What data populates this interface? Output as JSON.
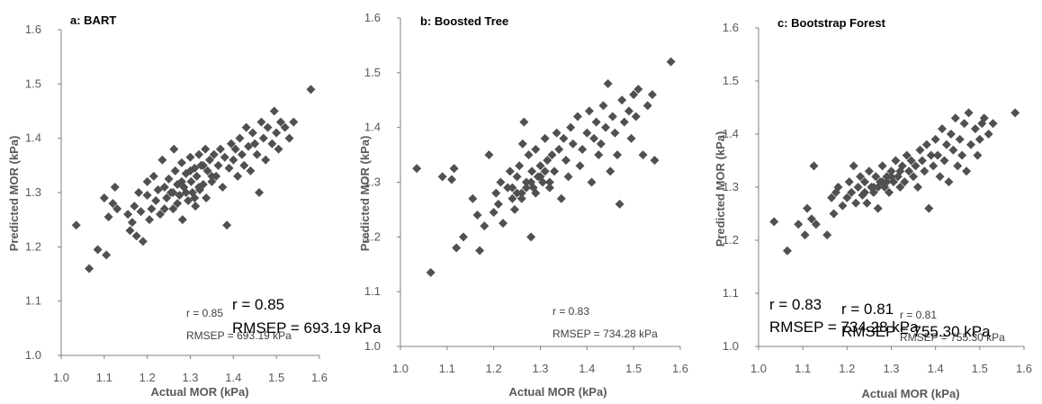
{
  "chart_data": [
    {
      "type": "scatter",
      "title": "a: BART",
      "xlabel": "Actual MOR (kPa)",
      "ylabel": "Predicted MOR (kPa)",
      "xlim": [
        1.0,
        1.6
      ],
      "ylim": [
        1.0,
        1.6
      ],
      "xticks": [
        "1.0",
        "1.1",
        "1.2",
        "1.3",
        "1.4",
        "1.5",
        "1.6"
      ],
      "yticks": [
        "1.0",
        "1.1",
        "1.2",
        "1.3",
        "1.4",
        "1.5",
        "1.6"
      ],
      "marker": "diamond",
      "color": "#505050",
      "stats_small": [
        "r = 0.85",
        "RMSEP = 693.19 kPa"
      ],
      "stats_large": [
        "r = 0.85",
        "RMSEP = 693.19 kPa"
      ],
      "points": [
        [
          1.035,
          1.24
        ],
        [
          1.065,
          1.16
        ],
        [
          1.085,
          1.195
        ],
        [
          1.1,
          1.29
        ],
        [
          1.105,
          1.185
        ],
        [
          1.11,
          1.255
        ],
        [
          1.12,
          1.28
        ],
        [
          1.125,
          1.31
        ],
        [
          1.13,
          1.27
        ],
        [
          1.155,
          1.26
        ],
        [
          1.16,
          1.23
        ],
        [
          1.165,
          1.245
        ],
        [
          1.17,
          1.275
        ],
        [
          1.175,
          1.22
        ],
        [
          1.18,
          1.3
        ],
        [
          1.185,
          1.265
        ],
        [
          1.19,
          1.21
        ],
        [
          1.2,
          1.32
        ],
        [
          1.2,
          1.295
        ],
        [
          1.205,
          1.25
        ],
        [
          1.21,
          1.27
        ],
        [
          1.215,
          1.33
        ],
        [
          1.22,
          1.285
        ],
        [
          1.225,
          1.305
        ],
        [
          1.23,
          1.26
        ],
        [
          1.235,
          1.36
        ],
        [
          1.24,
          1.31
        ],
        [
          1.245,
          1.29
        ],
        [
          1.25,
          1.325
        ],
        [
          1.255,
          1.3
        ],
        [
          1.26,
          1.27
        ],
        [
          1.262,
          1.38
        ],
        [
          1.265,
          1.34
        ],
        [
          1.27,
          1.315
        ],
        [
          1.275,
          1.295
        ],
        [
          1.28,
          1.355
        ],
        [
          1.282,
          1.25
        ],
        [
          1.285,
          1.31
        ],
        [
          1.29,
          1.335
        ],
        [
          1.295,
          1.285
        ],
        [
          1.3,
          1.365
        ],
        [
          1.302,
          1.32
        ],
        [
          1.305,
          1.3
        ],
        [
          1.31,
          1.345
        ],
        [
          1.312,
          1.275
        ],
        [
          1.315,
          1.33
        ],
        [
          1.32,
          1.37
        ],
        [
          1.322,
          1.305
        ],
        [
          1.325,
          1.35
        ],
        [
          1.33,
          1.315
        ],
        [
          1.335,
          1.38
        ],
        [
          1.337,
          1.29
        ],
        [
          1.34,
          1.34
        ],
        [
          1.345,
          1.36
        ],
        [
          1.35,
          1.32
        ],
        [
          1.355,
          1.37
        ],
        [
          1.36,
          1.33
        ],
        [
          1.365,
          1.35
        ],
        [
          1.37,
          1.38
        ],
        [
          1.375,
          1.31
        ],
        [
          1.38,
          1.365
        ],
        [
          1.385,
          1.24
        ],
        [
          1.39,
          1.345
        ],
        [
          1.395,
          1.39
        ],
        [
          1.4,
          1.36
        ],
        [
          1.405,
          1.38
        ],
        [
          1.41,
          1.33
        ],
        [
          1.415,
          1.4
        ],
        [
          1.42,
          1.37
        ],
        [
          1.425,
          1.35
        ],
        [
          1.43,
          1.42
        ],
        [
          1.435,
          1.385
        ],
        [
          1.44,
          1.34
        ],
        [
          1.445,
          1.41
        ],
        [
          1.45,
          1.39
        ],
        [
          1.455,
          1.37
        ],
        [
          1.46,
          1.3
        ],
        [
          1.465,
          1.43
        ],
        [
          1.47,
          1.4
        ],
        [
          1.475,
          1.36
        ],
        [
          1.48,
          1.42
        ],
        [
          1.49,
          1.39
        ],
        [
          1.495,
          1.45
        ],
        [
          1.5,
          1.41
        ],
        [
          1.505,
          1.38
        ],
        [
          1.51,
          1.43
        ],
        [
          1.52,
          1.42
        ],
        [
          1.53,
          1.4
        ],
        [
          1.54,
          1.43
        ],
        [
          1.58,
          1.49
        ],
        [
          1.27,
          1.28
        ],
        [
          1.29,
          1.3
        ],
        [
          1.31,
          1.29
        ],
        [
          1.33,
          1.35
        ],
        [
          1.35,
          1.33
        ],
        [
          1.24,
          1.27
        ],
        [
          1.26,
          1.3
        ],
        [
          1.28,
          1.32
        ],
        [
          1.3,
          1.34
        ],
        [
          1.32,
          1.31
        ]
      ]
    },
    {
      "type": "scatter",
      "title": "b: Boosted Tree",
      "xlabel": "Actual MOR (kPa)",
      "ylabel": "Predicted MOR (kPa)",
      "xlim": [
        1.0,
        1.6
      ],
      "ylim": [
        1.0,
        1.6
      ],
      "xticks": [
        "1.0",
        "1.1",
        "1.2",
        "1.3",
        "1.4",
        "1.5",
        "1.6"
      ],
      "yticks": [
        "1.0",
        "1.1",
        "1.2",
        "1.3",
        "1.4",
        "1.5",
        "1.6"
      ],
      "marker": "diamond",
      "color": "#505050",
      "stats_small": [
        "r = 0.83",
        "RMSEP = 734.28 kPa"
      ],
      "stats_large": [],
      "points": [
        [
          1.035,
          1.325
        ],
        [
          1.065,
          1.135
        ],
        [
          1.09,
          1.31
        ],
        [
          1.11,
          1.305
        ],
        [
          1.115,
          1.325
        ],
        [
          1.12,
          1.18
        ],
        [
          1.135,
          1.2
        ],
        [
          1.155,
          1.27
        ],
        [
          1.165,
          1.24
        ],
        [
          1.17,
          1.175
        ],
        [
          1.18,
          1.22
        ],
        [
          1.19,
          1.35
        ],
        [
          1.2,
          1.245
        ],
        [
          1.205,
          1.28
        ],
        [
          1.21,
          1.26
        ],
        [
          1.215,
          1.3
        ],
        [
          1.22,
          1.225
        ],
        [
          1.23,
          1.29
        ],
        [
          1.235,
          1.32
        ],
        [
          1.24,
          1.27
        ],
        [
          1.245,
          1.25
        ],
        [
          1.25,
          1.31
        ],
        [
          1.255,
          1.33
        ],
        [
          1.26,
          1.28
        ],
        [
          1.262,
          1.37
        ],
        [
          1.265,
          1.41
        ],
        [
          1.27,
          1.3
        ],
        [
          1.275,
          1.35
        ],
        [
          1.28,
          1.2
        ],
        [
          1.282,
          1.32
        ],
        [
          1.285,
          1.29
        ],
        [
          1.29,
          1.36
        ],
        [
          1.295,
          1.31
        ],
        [
          1.3,
          1.33
        ],
        [
          1.305,
          1.3
        ],
        [
          1.31,
          1.38
        ],
        [
          1.315,
          1.34
        ],
        [
          1.32,
          1.29
        ],
        [
          1.325,
          1.35
        ],
        [
          1.33,
          1.32
        ],
        [
          1.335,
          1.39
        ],
        [
          1.34,
          1.36
        ],
        [
          1.345,
          1.27
        ],
        [
          1.35,
          1.38
        ],
        [
          1.355,
          1.34
        ],
        [
          1.36,
          1.31
        ],
        [
          1.365,
          1.4
        ],
        [
          1.37,
          1.37
        ],
        [
          1.38,
          1.42
        ],
        [
          1.385,
          1.33
        ],
        [
          1.39,
          1.36
        ],
        [
          1.4,
          1.39
        ],
        [
          1.405,
          1.43
        ],
        [
          1.41,
          1.3
        ],
        [
          1.415,
          1.38
        ],
        [
          1.42,
          1.41
        ],
        [
          1.425,
          1.35
        ],
        [
          1.43,
          1.37
        ],
        [
          1.435,
          1.44
        ],
        [
          1.44,
          1.4
        ],
        [
          1.445,
          1.48
        ],
        [
          1.45,
          1.32
        ],
        [
          1.455,
          1.42
        ],
        [
          1.46,
          1.39
        ],
        [
          1.465,
          1.35
        ],
        [
          1.47,
          1.26
        ],
        [
          1.475,
          1.45
        ],
        [
          1.48,
          1.41
        ],
        [
          1.49,
          1.43
        ],
        [
          1.495,
          1.38
        ],
        [
          1.5,
          1.46
        ],
        [
          1.505,
          1.42
        ],
        [
          1.51,
          1.47
        ],
        [
          1.52,
          1.35
        ],
        [
          1.53,
          1.44
        ],
        [
          1.54,
          1.46
        ],
        [
          1.545,
          1.34
        ],
        [
          1.58,
          1.52
        ],
        [
          1.26,
          1.27
        ],
        [
          1.27,
          1.29
        ],
        [
          1.28,
          1.3
        ],
        [
          1.29,
          1.28
        ],
        [
          1.3,
          1.31
        ],
        [
          1.31,
          1.32
        ],
        [
          1.32,
          1.3
        ],
        [
          1.25,
          1.28
        ],
        [
          1.24,
          1.29
        ]
      ]
    },
    {
      "type": "scatter",
      "title": "c: Bootstrap Forest",
      "xlabel": "Actual MOR (kPa)",
      "ylabel": "Predicted MOR (kPa)",
      "xlim": [
        1.0,
        1.6
      ],
      "ylim": [
        1.0,
        1.6
      ],
      "xticks": [
        "1.0",
        "1.1",
        "1.2",
        "1.3",
        "1.4",
        "1.5",
        "1.6"
      ],
      "yticks": [
        "1.0",
        "1.1",
        "1.2",
        "1.3",
        "1.4",
        "1.5",
        "1.6"
      ],
      "marker": "diamond",
      "color": "#505050",
      "stats_small": [
        "r = 0.81",
        "RMSEP = 755.30 kPa"
      ],
      "stats_large": [
        "r = 0.83",
        "RMSEP = 734.28 kPa",
        "r = 0.81",
        "RMSEP = 755.30 kPa"
      ],
      "points": [
        [
          1.035,
          1.235
        ],
        [
          1.065,
          1.18
        ],
        [
          1.09,
          1.23
        ],
        [
          1.105,
          1.21
        ],
        [
          1.11,
          1.26
        ],
        [
          1.12,
          1.24
        ],
        [
          1.125,
          1.34
        ],
        [
          1.13,
          1.23
        ],
        [
          1.155,
          1.21
        ],
        [
          1.165,
          1.28
        ],
        [
          1.17,
          1.25
        ],
        [
          1.175,
          1.29
        ],
        [
          1.18,
          1.3
        ],
        [
          1.19,
          1.265
        ],
        [
          1.2,
          1.28
        ],
        [
          1.205,
          1.31
        ],
        [
          1.21,
          1.29
        ],
        [
          1.215,
          1.34
        ],
        [
          1.22,
          1.27
        ],
        [
          1.225,
          1.3
        ],
        [
          1.23,
          1.32
        ],
        [
          1.235,
          1.285
        ],
        [
          1.24,
          1.31
        ],
        [
          1.245,
          1.27
        ],
        [
          1.25,
          1.33
        ],
        [
          1.255,
          1.3
        ],
        [
          1.26,
          1.29
        ],
        [
          1.265,
          1.32
        ],
        [
          1.27,
          1.26
        ],
        [
          1.275,
          1.31
        ],
        [
          1.28,
          1.34
        ],
        [
          1.285,
          1.3
        ],
        [
          1.29,
          1.32
        ],
        [
          1.295,
          1.29
        ],
        [
          1.3,
          1.33
        ],
        [
          1.305,
          1.31
        ],
        [
          1.31,
          1.35
        ],
        [
          1.315,
          1.32
        ],
        [
          1.32,
          1.3
        ],
        [
          1.325,
          1.34
        ],
        [
          1.33,
          1.31
        ],
        [
          1.335,
          1.36
        ],
        [
          1.34,
          1.33
        ],
        [
          1.345,
          1.35
        ],
        [
          1.35,
          1.32
        ],
        [
          1.355,
          1.34
        ],
        [
          1.36,
          1.3
        ],
        [
          1.365,
          1.37
        ],
        [
          1.37,
          1.35
        ],
        [
          1.375,
          1.33
        ],
        [
          1.38,
          1.38
        ],
        [
          1.385,
          1.26
        ],
        [
          1.39,
          1.36
        ],
        [
          1.395,
          1.34
        ],
        [
          1.4,
          1.39
        ],
        [
          1.405,
          1.36
        ],
        [
          1.41,
          1.32
        ],
        [
          1.415,
          1.41
        ],
        [
          1.42,
          1.35
        ],
        [
          1.425,
          1.38
        ],
        [
          1.43,
          1.31
        ],
        [
          1.435,
          1.4
        ],
        [
          1.44,
          1.37
        ],
        [
          1.445,
          1.43
        ],
        [
          1.45,
          1.34
        ],
        [
          1.455,
          1.39
        ],
        [
          1.46,
          1.36
        ],
        [
          1.465,
          1.42
        ],
        [
          1.47,
          1.33
        ],
        [
          1.475,
          1.44
        ],
        [
          1.48,
          1.38
        ],
        [
          1.49,
          1.41
        ],
        [
          1.495,
          1.36
        ],
        [
          1.5,
          1.39
        ],
        [
          1.505,
          1.42
        ],
        [
          1.51,
          1.43
        ],
        [
          1.52,
          1.4
        ],
        [
          1.53,
          1.42
        ],
        [
          1.58,
          1.44
        ],
        [
          1.26,
          1.3
        ],
        [
          1.28,
          1.31
        ],
        [
          1.3,
          1.32
        ],
        [
          1.32,
          1.33
        ],
        [
          1.24,
          1.29
        ],
        [
          1.27,
          1.3
        ],
        [
          1.29,
          1.31
        ]
      ]
    }
  ]
}
